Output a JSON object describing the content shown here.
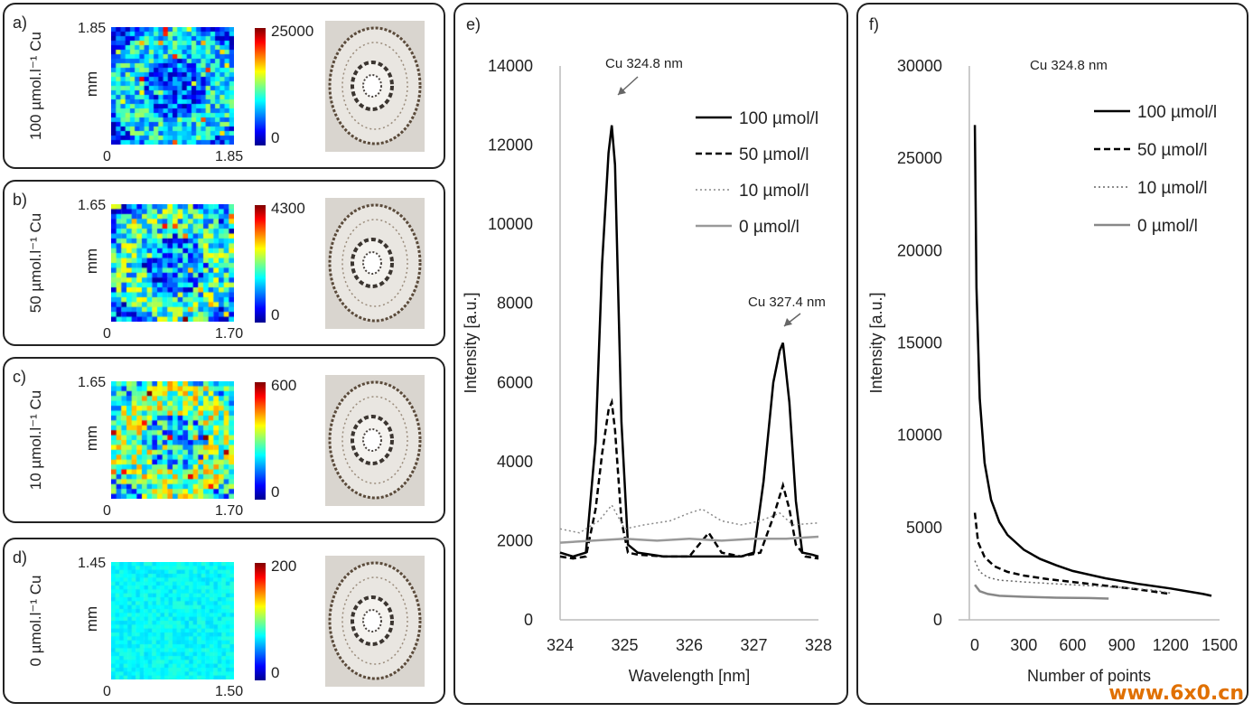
{
  "heatmaps": [
    {
      "letter": "a)",
      "label": "100 µmol.l⁻¹ Cu",
      "unit": "mm",
      "ymax": "1.85",
      "x0": "0",
      "xmax": "1.85",
      "cmax": "25000",
      "cmin": "0",
      "grid": 26,
      "base": 0.25,
      "spread": 0.35
    },
    {
      "letter": "b)",
      "label": "50 µmol.l⁻¹ Cu",
      "unit": "mm",
      "ymax": "1.65",
      "x0": "0",
      "xmax": "1.70",
      "cmax": "4300",
      "cmin": "0",
      "grid": 24,
      "base": 0.3,
      "spread": 0.45
    },
    {
      "letter": "c)",
      "label": "10 µmol.l⁻¹ Cu",
      "unit": "mm",
      "ymax": "1.65",
      "x0": "0",
      "xmax": "1.70",
      "cmax": "600",
      "cmin": "0",
      "grid": 24,
      "base": 0.4,
      "spread": 0.45
    },
    {
      "letter": "d)",
      "label": "0 µmol.l⁻¹ Cu",
      "unit": "mm",
      "ymax": "1.45",
      "x0": "0",
      "xmax": "1.50",
      "cmax": "200",
      "cmin": "0",
      "grid": 30,
      "base": 0.38,
      "spread": 0.08
    }
  ],
  "chart_data": [
    {
      "type": "line",
      "letter": "e)",
      "xlabel": "Wavelength [nm]",
      "ylabel": "Intensity [a.u.]",
      "xlim": [
        324,
        328
      ],
      "ylim": [
        0,
        14000
      ],
      "xticks": [
        "324",
        "325",
        "326",
        "327",
        "328"
      ],
      "yticks": [
        "0",
        "2000",
        "4000",
        "6000",
        "8000",
        "10000",
        "12000",
        "14000"
      ],
      "annotations": [
        "Cu 324.8 nm",
        "Cu 327.4 nm"
      ],
      "series": [
        {
          "name": "100 µmol/l",
          "style": "solid",
          "color": "#000000",
          "x": [
            324.0,
            324.2,
            324.4,
            324.55,
            324.65,
            324.75,
            324.8,
            324.85,
            324.95,
            325.05,
            325.2,
            325.6,
            326.0,
            326.4,
            326.8,
            327.0,
            327.15,
            327.3,
            327.4,
            327.45,
            327.55,
            327.65,
            327.75,
            327.9,
            328.0
          ],
          "y": [
            1700,
            1600,
            1700,
            4500,
            9000,
            11800,
            12500,
            11500,
            5000,
            1900,
            1700,
            1600,
            1600,
            1600,
            1600,
            1700,
            3500,
            6000,
            6800,
            7000,
            5500,
            3000,
            1700,
            1650,
            1600
          ]
        },
        {
          "name": "50 µmol/l",
          "style": "dashed",
          "color": "#000000",
          "x": [
            324.0,
            324.2,
            324.4,
            324.55,
            324.65,
            324.75,
            324.8,
            324.85,
            324.95,
            325.05,
            325.2,
            325.6,
            326.0,
            326.3,
            326.5,
            326.8,
            327.1,
            327.3,
            327.45,
            327.55,
            327.65,
            327.8,
            328.0
          ],
          "y": [
            1600,
            1550,
            1600,
            2800,
            4200,
            5300,
            5500,
            4800,
            2500,
            1700,
            1650,
            1600,
            1600,
            2200,
            1700,
            1600,
            1700,
            2600,
            3400,
            2800,
            1900,
            1600,
            1550
          ]
        },
        {
          "name": "10 µmol/l",
          "style": "dotted",
          "color": "#888888",
          "x": [
            324.0,
            324.3,
            324.6,
            324.8,
            325.0,
            325.3,
            325.7,
            326.0,
            326.2,
            326.5,
            326.8,
            327.1,
            327.4,
            327.6,
            328.0
          ],
          "y": [
            2300,
            2200,
            2500,
            2900,
            2300,
            2400,
            2500,
            2700,
            2800,
            2500,
            2400,
            2500,
            2700,
            2400,
            2450
          ]
        },
        {
          "name": "0 µmol/l",
          "style": "solid",
          "color": "#999999",
          "x": [
            324.0,
            324.5,
            325.0,
            325.5,
            326.0,
            326.5,
            327.0,
            327.5,
            328.0
          ],
          "y": [
            1950,
            2000,
            2050,
            2000,
            2050,
            2000,
            2050,
            2050,
            2100
          ]
        }
      ]
    },
    {
      "type": "line",
      "letter": "f)",
      "xlabel": "Number of points",
      "ylabel": "Intensity [a.u.]",
      "xlim": [
        -100,
        1500
      ],
      "ylim": [
        0,
        30000
      ],
      "xticks": [
        "0",
        "300",
        "600",
        "900",
        "1200",
        "1500"
      ],
      "yticks": [
        "0",
        "5000",
        "10000",
        "15000",
        "20000",
        "25000",
        "30000"
      ],
      "annotations": [
        "Cu 324.8 nm"
      ],
      "series": [
        {
          "name": "100 µmol/l",
          "style": "solid",
          "color": "#000000",
          "x": [
            0,
            10,
            30,
            60,
            100,
            150,
            200,
            300,
            400,
            500,
            600,
            800,
            1000,
            1200,
            1400,
            1450
          ],
          "y": [
            26800,
            18000,
            12000,
            8500,
            6500,
            5300,
            4600,
            3800,
            3300,
            2950,
            2650,
            2250,
            1950,
            1700,
            1400,
            1300
          ]
        },
        {
          "name": "50 µmol/l",
          "style": "dashed",
          "color": "#000000",
          "x": [
            0,
            20,
            60,
            120,
            200,
            300,
            450,
            600,
            800,
            1000,
            1200
          ],
          "y": [
            5800,
            4200,
            3400,
            2900,
            2600,
            2400,
            2200,
            2050,
            1850,
            1650,
            1400
          ]
        },
        {
          "name": "10 µmol/l",
          "style": "dotted",
          "color": "#666666",
          "x": [
            0,
            30,
            80,
            150,
            300,
            500,
            700,
            900,
            1100,
            1200
          ],
          "y": [
            3200,
            2600,
            2300,
            2150,
            2050,
            1950,
            1850,
            1750,
            1600,
            1450
          ]
        },
        {
          "name": "0 µmol/l",
          "style": "solid",
          "color": "#888888",
          "x": [
            0,
            30,
            80,
            150,
            300,
            500,
            700,
            820
          ],
          "y": [
            1900,
            1550,
            1400,
            1300,
            1250,
            1200,
            1180,
            1150
          ]
        }
      ]
    }
  ],
  "watermark": "www.6x0.cn"
}
